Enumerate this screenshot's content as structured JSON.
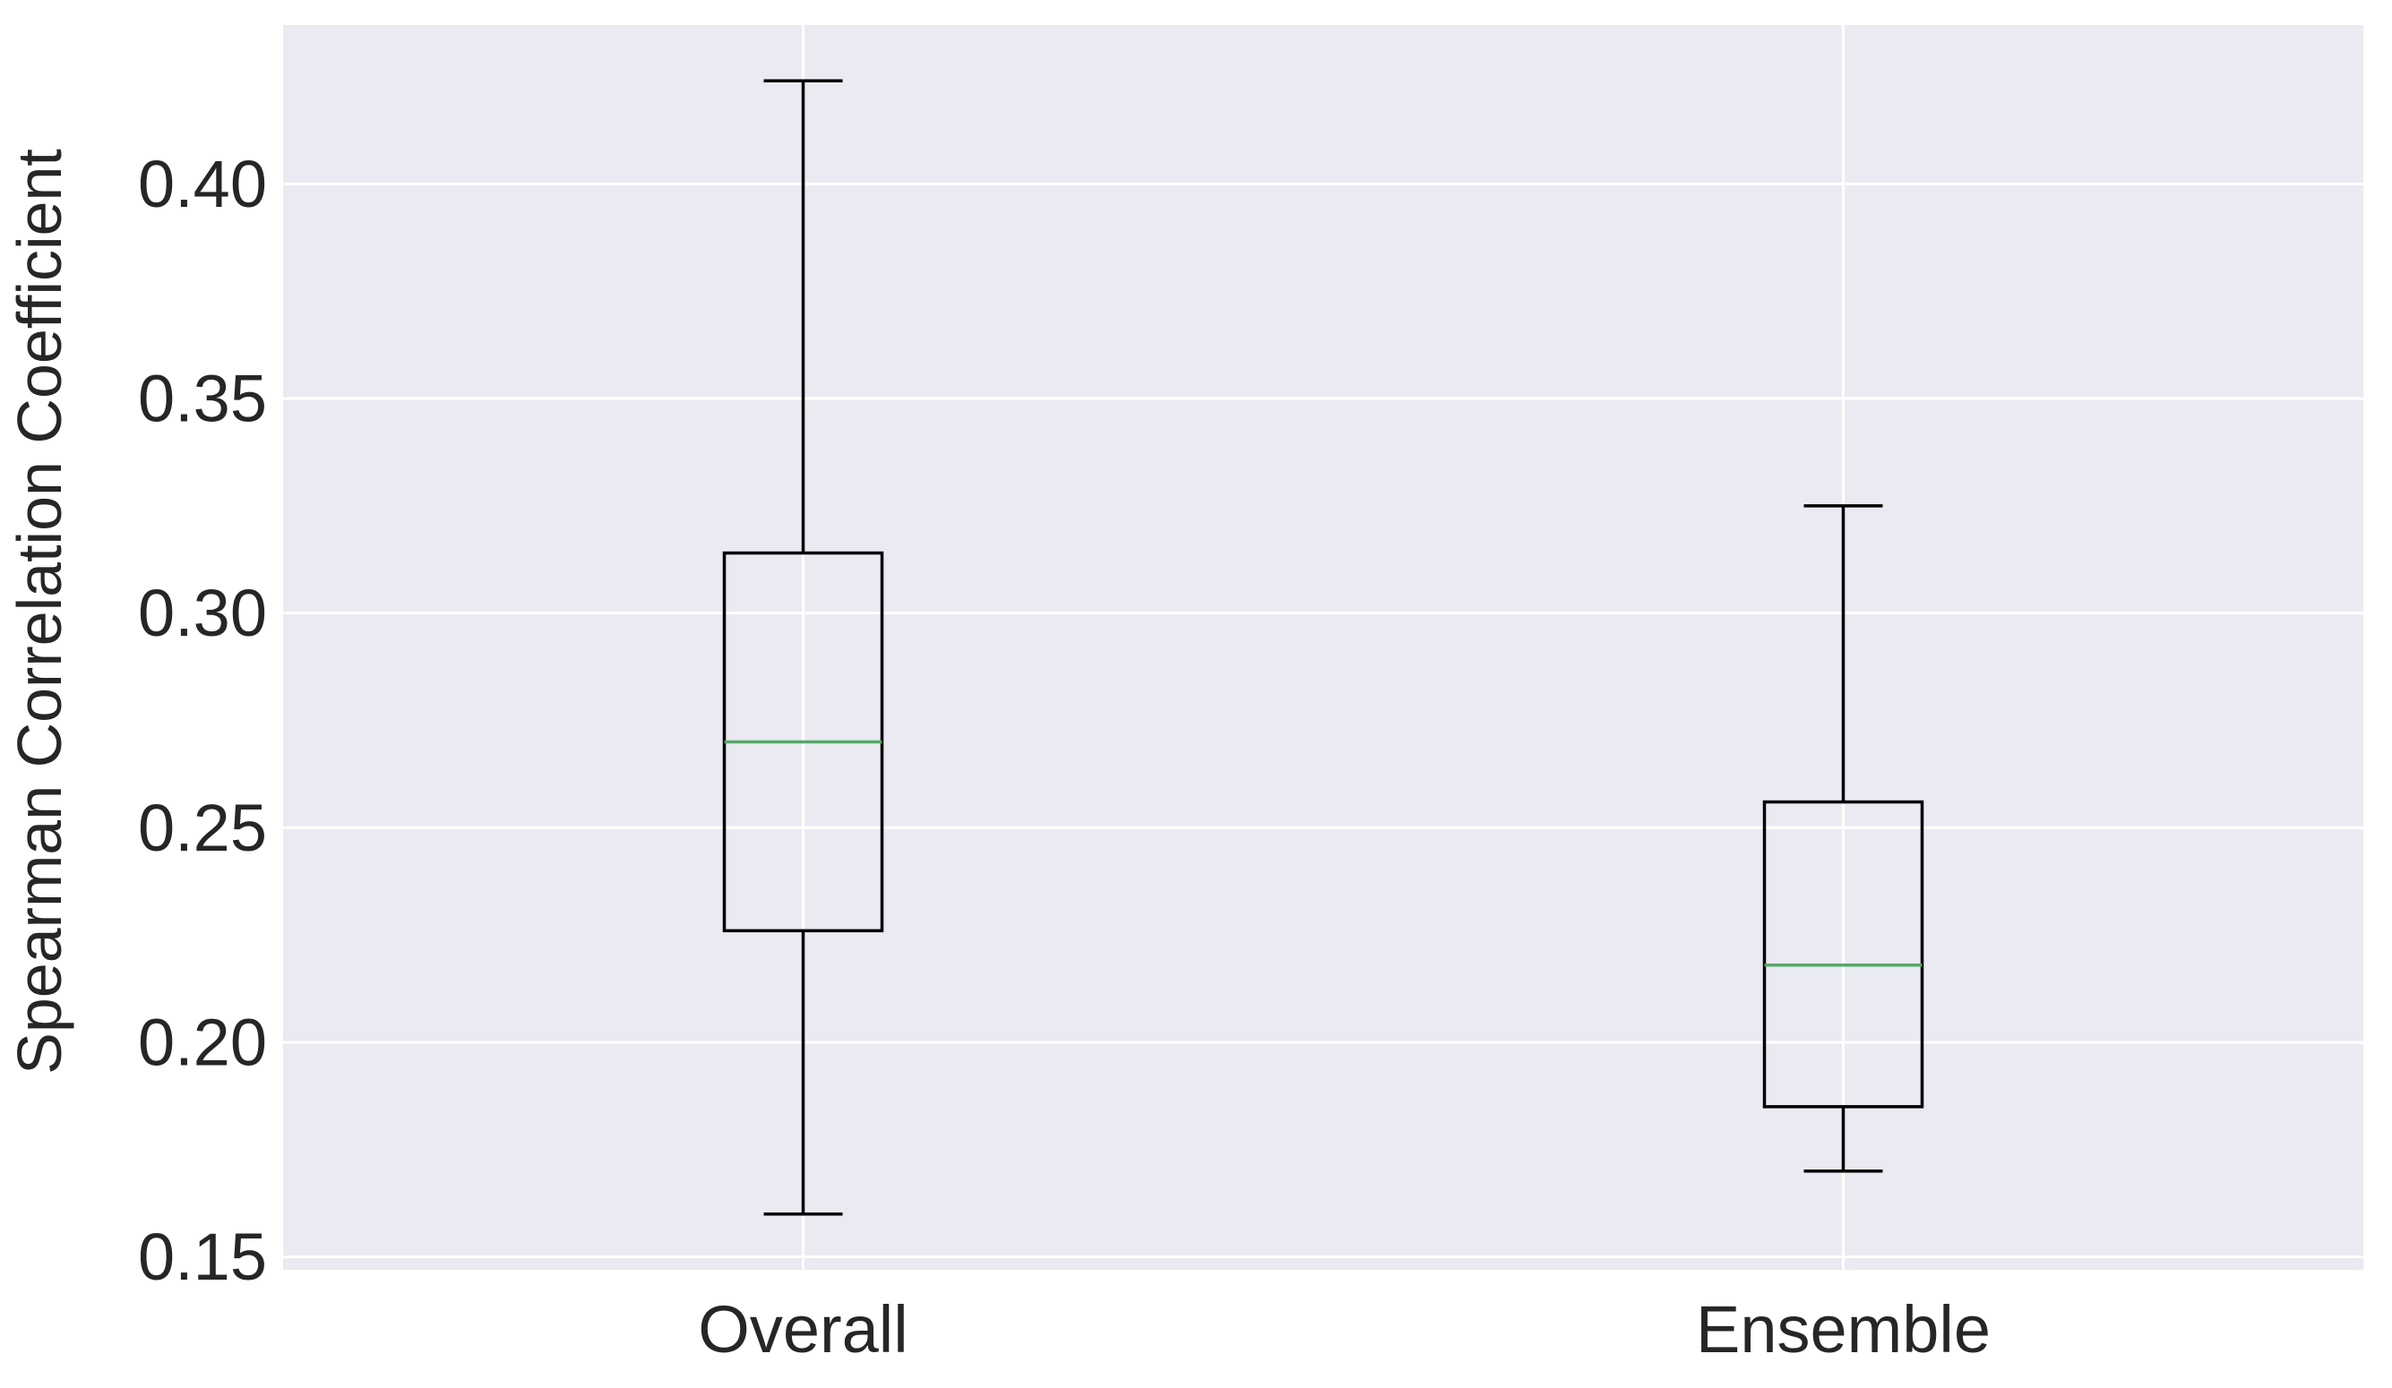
{
  "chart_data": {
    "type": "box",
    "title": "",
    "xlabel": "",
    "ylabel": "Spearman Correlation Coefficient",
    "ylim": [
      0.147,
      0.437
    ],
    "yticks": [
      0.15,
      0.2,
      0.25,
      0.3,
      0.35,
      0.4
    ],
    "ytick_labels": [
      "0.15",
      "0.20",
      "0.25",
      "0.30",
      "0.35",
      "0.40"
    ],
    "grid": true,
    "colors": {
      "plot_background": "#eaeaf2",
      "grid": "#ffffff",
      "box_edge": "#000000",
      "median": "#55a868"
    },
    "categories": [
      "Overall",
      "Ensemble"
    ],
    "boxes": [
      {
        "label": "Overall",
        "whisker_low": 0.16,
        "q1": 0.226,
        "median": 0.27,
        "q3": 0.314,
        "whisker_high": 0.424
      },
      {
        "label": "Ensemble",
        "whisker_low": 0.17,
        "q1": 0.185,
        "median": 0.218,
        "q3": 0.256,
        "whisker_high": 0.325
      }
    ]
  }
}
